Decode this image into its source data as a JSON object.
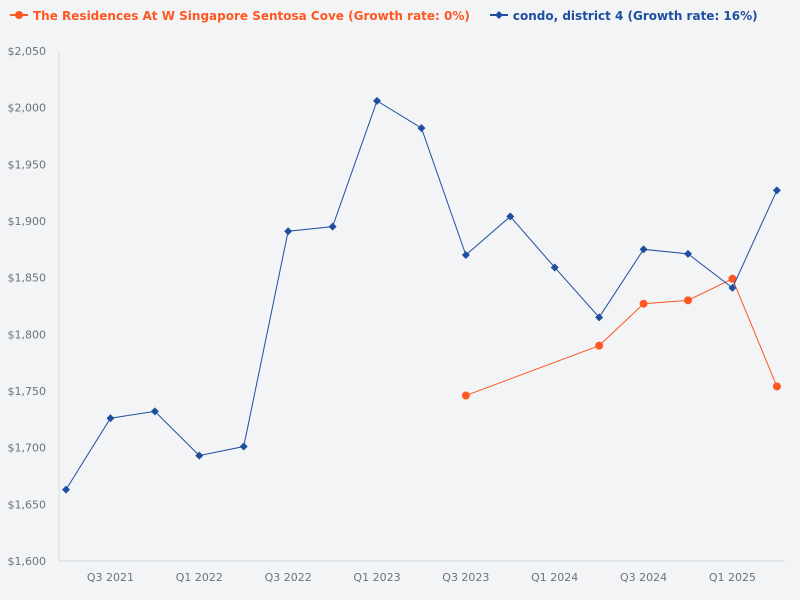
{
  "chart_data": {
    "type": "line",
    "categories": [
      "Q2 2021",
      "Q3 2021",
      "Q4 2021",
      "Q1 2022",
      "Q2 2022",
      "Q3 2022",
      "Q4 2022",
      "Q1 2023",
      "Q2 2023",
      "Q3 2023",
      "Q4 2023",
      "Q1 2024",
      "Q2 2024",
      "Q3 2024",
      "Q4 2024",
      "Q1 2025",
      "Q2 2025"
    ],
    "x_tick_labels": [
      "Q3 2021",
      "Q1 2022",
      "Q3 2022",
      "Q1 2023",
      "Q3 2023",
      "Q1 2024",
      "Q3 2024",
      "Q1 2025"
    ],
    "y_tick_labels": [
      "$1,600",
      "$1,650",
      "$1,700",
      "$1,750",
      "$1,800",
      "$1,850",
      "$1,900",
      "$1,950",
      "$2,000",
      "$2,050"
    ],
    "ylim": [
      1600,
      2050
    ],
    "grid": false,
    "legend_position": "top-left",
    "series": [
      {
        "name": "The Residences At W Singapore Sentosa Cove (Growth rate: 0%)",
        "color": "#ff5722",
        "marker": "circle",
        "values": [
          null,
          null,
          null,
          null,
          null,
          null,
          null,
          null,
          null,
          1746,
          null,
          null,
          1790,
          1827,
          1830,
          1849,
          1754
        ]
      },
      {
        "name": "condo, district 4 (Growth rate: 16%)",
        "color": "#1f4e9e",
        "marker": "diamond",
        "values": [
          1663,
          1726,
          1732,
          1693,
          1701,
          1891,
          1895,
          2006,
          1982,
          1870,
          1904,
          1859,
          1815,
          1875,
          1871,
          1841,
          1927
        ]
      }
    ]
  }
}
